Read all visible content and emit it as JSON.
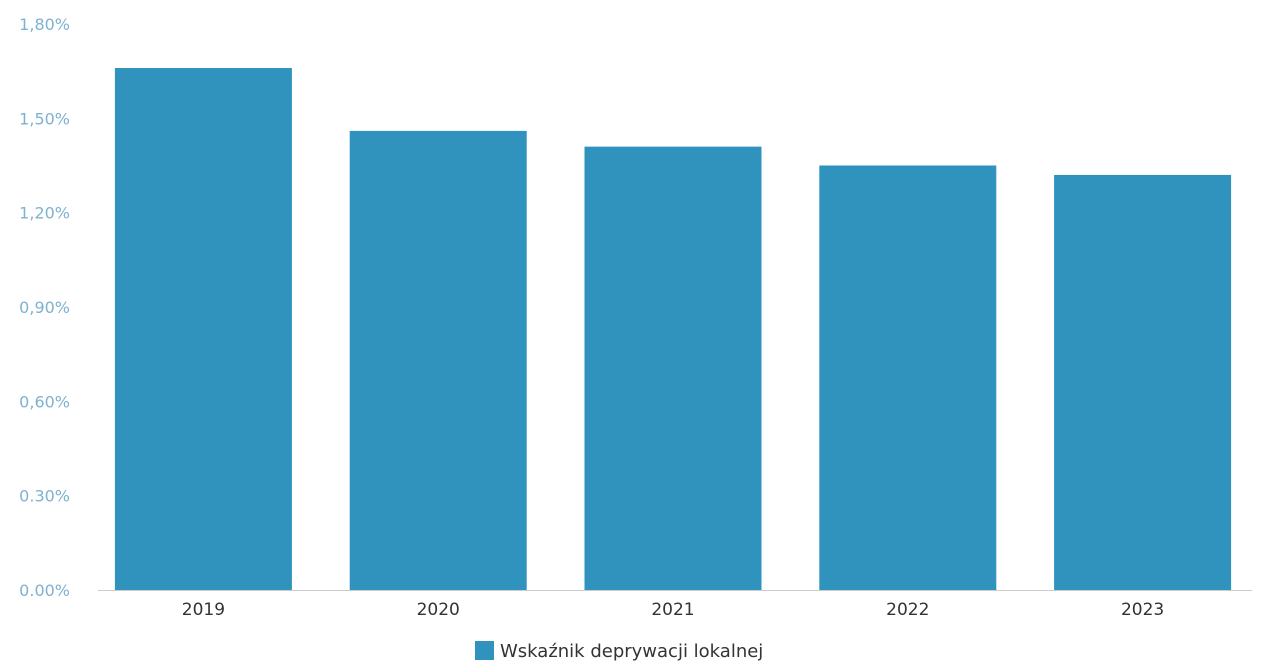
{
  "chart_data": {
    "type": "bar",
    "categories": [
      "2019",
      "2020",
      "2021",
      "2022",
      "2023"
    ],
    "series": [
      {
        "name": "Wskaźnik deprywacji lokalnej",
        "values": [
          1.66,
          1.46,
          1.41,
          1.35,
          1.32
        ]
      }
    ],
    "y_ticks": [
      "0.00%",
      "0.30%",
      "0,60%",
      "0,90%",
      "1,20%",
      "1,50%",
      "1,80%"
    ],
    "ylim": [
      0,
      1.8
    ],
    "grid": false,
    "legend_position": "bottom-center",
    "colors": {
      "bar": "#2f93be",
      "y_tick": "#7fb2cf",
      "x_tick": "#333333",
      "axis": "#cccccc"
    }
  }
}
